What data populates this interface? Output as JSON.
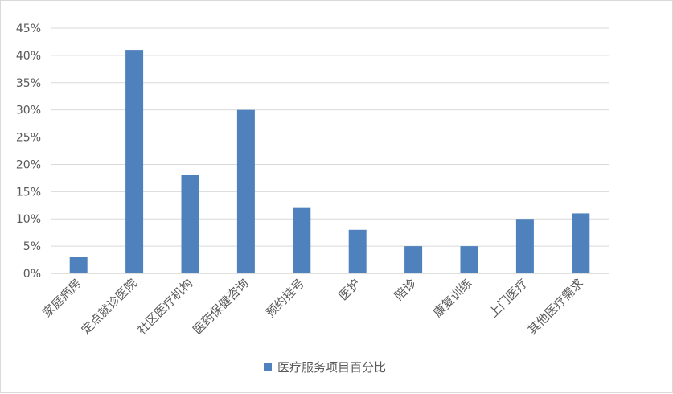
{
  "chart_data": {
    "type": "bar",
    "categories": [
      "家庭病房",
      "定点就诊医院",
      "社区医疗机构",
      "医药保健咨询",
      "预约挂号",
      "医护",
      "陪诊",
      "康复训练",
      "上门医疗",
      "其他医疗需求"
    ],
    "series": [
      {
        "name": "医疗服务项目百分比",
        "values": [
          3,
          41,
          18,
          30,
          12,
          8,
          5,
          5,
          10,
          11
        ],
        "color": "#4f81bd"
      }
    ],
    "y_ticks": [
      "0%",
      "5%",
      "10%",
      "15%",
      "20%",
      "25%",
      "30%",
      "35%",
      "40%",
      "45%"
    ],
    "ylim": [
      0,
      45
    ],
    "ytick_step": 5,
    "grid": true,
    "legend_position": "bottom",
    "grid_color": "#d9d9d9",
    "axis_color": "#bfbfbf"
  }
}
